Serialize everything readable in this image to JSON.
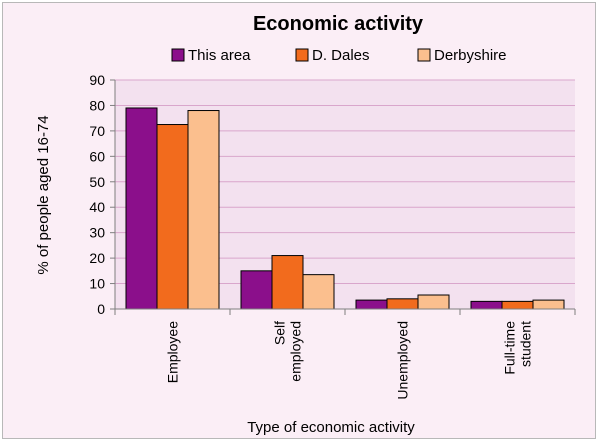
{
  "chart_data": {
    "type": "bar",
    "title": "Economic activity",
    "xlabel": "Type of economic activity",
    "ylabel": "% of people aged 16-74",
    "categories": [
      [
        "Employee"
      ],
      [
        "Self",
        "employed"
      ],
      [
        "Unemployed"
      ],
      [
        "Full-time",
        "student"
      ]
    ],
    "series": [
      {
        "name": "This area",
        "color": "#8b0f8b",
        "values": [
          79,
          15,
          3.5,
          3
        ]
      },
      {
        "name": "D. Dales",
        "color": "#f26b1d",
        "values": [
          72.5,
          21,
          4,
          3
        ]
      },
      {
        "name": "Derbyshire",
        "color": "#fbbf8e",
        "values": [
          78,
          13.5,
          5.5,
          3.5
        ]
      }
    ],
    "ylim": [
      0,
      90
    ],
    "yticks": [
      0,
      10,
      20,
      30,
      40,
      50,
      60,
      70,
      80,
      90
    ],
    "grid": true,
    "legend_position": "top",
    "plot_background": "#f3e1ef",
    "chart_background": "#fbeef6",
    "gridline_color": "#d9a6cc"
  }
}
